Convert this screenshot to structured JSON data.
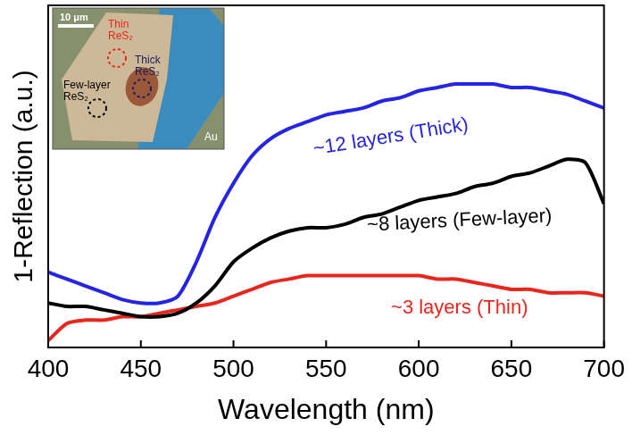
{
  "chart_data": {
    "type": "line",
    "x_label": "Wavelength (nm)",
    "y_label": "1-Reflection (a.u.)",
    "xlim": [
      400,
      700
    ],
    "xticks": [
      400,
      450,
      500,
      550,
      600,
      650,
      700
    ],
    "ylim": [
      0,
      1
    ],
    "tick_labels": "x",
    "grid": false,
    "x": [
      400,
      410,
      420,
      430,
      440,
      450,
      460,
      470,
      480,
      490,
      500,
      510,
      520,
      530,
      540,
      550,
      560,
      570,
      580,
      590,
      600,
      610,
      620,
      630,
      640,
      650,
      660,
      670,
      680,
      690,
      700
    ],
    "series": [
      {
        "name": "~12 layers (Thick)",
        "color": "#2424e6",
        "line_style": "solid",
        "values": [
          0.22,
          0.2,
          0.18,
          0.16,
          0.14,
          0.13,
          0.13,
          0.15,
          0.25,
          0.38,
          0.48,
          0.56,
          0.61,
          0.64,
          0.66,
          0.68,
          0.69,
          0.7,
          0.72,
          0.73,
          0.75,
          0.76,
          0.77,
          0.77,
          0.77,
          0.76,
          0.76,
          0.75,
          0.74,
          0.72,
          0.7
        ]
      },
      {
        "name": "~8 layers (Few-layer)",
        "color": "#000000",
        "line_style": "solid",
        "values": [
          0.13,
          0.12,
          0.12,
          0.11,
          0.1,
          0.09,
          0.09,
          0.1,
          0.13,
          0.18,
          0.25,
          0.29,
          0.32,
          0.34,
          0.35,
          0.35,
          0.36,
          0.38,
          0.39,
          0.41,
          0.43,
          0.44,
          0.45,
          0.47,
          0.48,
          0.5,
          0.51,
          0.53,
          0.55,
          0.54,
          0.42
        ]
      },
      {
        "name": "~3 layers (Thin)",
        "color": "#e8261e",
        "line_style": "solid",
        "values": [
          0.02,
          0.07,
          0.08,
          0.08,
          0.09,
          0.09,
          0.1,
          0.11,
          0.12,
          0.13,
          0.15,
          0.17,
          0.19,
          0.2,
          0.21,
          0.21,
          0.21,
          0.21,
          0.21,
          0.21,
          0.21,
          0.2,
          0.2,
          0.19,
          0.18,
          0.17,
          0.17,
          0.16,
          0.16,
          0.16,
          0.15
        ]
      }
    ],
    "annotations": [
      "10 μm",
      "Thin ReS₂",
      "Thick ReS₂",
      "Few-layer ReS₂",
      "Au"
    ]
  }
}
